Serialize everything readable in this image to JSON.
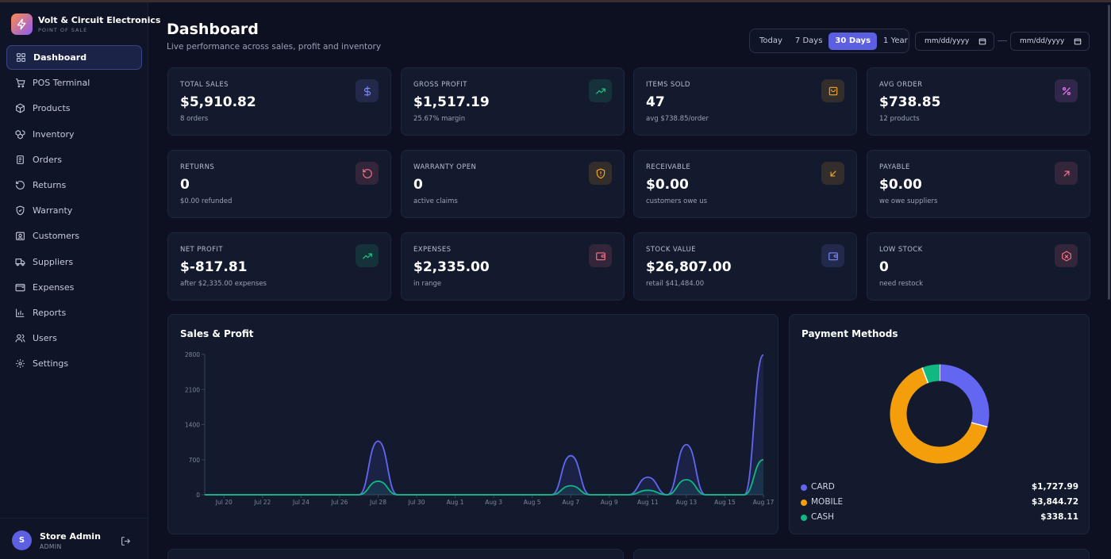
{
  "brand": {
    "name": "Volt & Circuit Electronics",
    "subtitle": "POINT OF SALE"
  },
  "nav": [
    {
      "label": "Dashboard",
      "icon": "grid-icon",
      "active": true
    },
    {
      "label": "POS Terminal",
      "icon": "cart-icon"
    },
    {
      "label": "Products",
      "icon": "box-icon"
    },
    {
      "label": "Inventory",
      "icon": "boxes-icon"
    },
    {
      "label": "Orders",
      "icon": "clipboard-icon"
    },
    {
      "label": "Returns",
      "icon": "return-icon"
    },
    {
      "label": "Warranty",
      "icon": "shield-icon"
    },
    {
      "label": "Customers",
      "icon": "contact-icon"
    },
    {
      "label": "Suppliers",
      "icon": "truck-icon"
    },
    {
      "label": "Expenses",
      "icon": "wallet-icon"
    },
    {
      "label": "Reports",
      "icon": "bar-chart-icon"
    },
    {
      "label": "Users",
      "icon": "users-icon"
    },
    {
      "label": "Settings",
      "icon": "gear-icon"
    }
  ],
  "user": {
    "initial": "S",
    "name": "Store Admin",
    "role": "ADMIN"
  },
  "header": {
    "title": "Dashboard",
    "subtitle": "Live performance across sales, profit and inventory"
  },
  "range": {
    "options": [
      "Today",
      "7 Days",
      "30 Days",
      "1 Year"
    ],
    "active": "30 Days"
  },
  "dates": {
    "from_placeholder": "mm/dd/yyyy",
    "to_placeholder": "mm/dd/yyyy"
  },
  "stats": [
    {
      "label": "TOTAL SALES",
      "value": "$5,910.82",
      "sub": "8 orders",
      "icon": "dollar-icon",
      "color": "#7c87ff"
    },
    {
      "label": "GROSS PROFIT",
      "value": "$1,517.19",
      "sub": "25.67% margin",
      "icon": "trend-up-icon",
      "color": "#22c58b"
    },
    {
      "label": "ITEMS SOLD",
      "value": "47",
      "sub": "avg $738.85/order",
      "icon": "bag-icon",
      "color": "#f5a623"
    },
    {
      "label": "AVG ORDER",
      "value": "$738.85",
      "sub": "12 products",
      "icon": "percent-icon",
      "color": "#e879f9"
    },
    {
      "label": "RETURNS",
      "value": "0",
      "sub": "$0.00 refunded",
      "icon": "rotate-icon",
      "color": "#fb7185"
    },
    {
      "label": "WARRANTY OPEN",
      "value": "0",
      "sub": "active claims",
      "icon": "shield-icon",
      "color": "#f5a623"
    },
    {
      "label": "RECEIVABLE",
      "value": "$0.00",
      "sub": "customers owe us",
      "icon": "arrow-down-left-icon",
      "color": "#f5a623"
    },
    {
      "label": "PAYABLE",
      "value": "$0.00",
      "sub": "we owe suppliers",
      "icon": "arrow-up-right-icon",
      "color": "#fb7185"
    },
    {
      "label": "NET PROFIT",
      "value": "$-817.81",
      "sub": "after $2,335.00 expenses",
      "icon": "trend-up-icon",
      "color": "#22c58b"
    },
    {
      "label": "EXPENSES",
      "value": "$2,335.00",
      "sub": "in range",
      "icon": "wallet-icon",
      "color": "#fb7185"
    },
    {
      "label": "STOCK VALUE",
      "value": "$26,807.00",
      "sub": "retail $41,484.00",
      "icon": "wallet-icon",
      "color": "#7c87ff"
    },
    {
      "label": "LOW STOCK",
      "value": "0",
      "sub": "need restock",
      "icon": "package-x-icon",
      "color": "#fb7185"
    }
  ],
  "sales_panel": {
    "title": "Sales & Profit"
  },
  "payment_panel": {
    "title": "Payment Methods",
    "methods": [
      {
        "name": "CARD",
        "amount": "$1,727.99",
        "value": 1727.99,
        "color": "#6366f1"
      },
      {
        "name": "MOBILE",
        "amount": "$3,844.72",
        "value": 3844.72,
        "color": "#f59e0b"
      },
      {
        "name": "CASH",
        "amount": "$338.11",
        "value": 338.11,
        "color": "#10b981"
      }
    ]
  },
  "chart_data": [
    {
      "type": "area",
      "title": "Sales & Profit",
      "x": [
        "Jul 19",
        "Jul 20",
        "Jul 21",
        "Jul 22",
        "Jul 23",
        "Jul 24",
        "Jul 25",
        "Jul 26",
        "Jul 27",
        "Jul 28",
        "Jul 29",
        "Jul 30",
        "Jul 31",
        "Aug 1",
        "Aug 2",
        "Aug 3",
        "Aug 4",
        "Aug 5",
        "Aug 6",
        "Aug 7",
        "Aug 8",
        "Aug 9",
        "Aug 10",
        "Aug 11",
        "Aug 12",
        "Aug 13",
        "Aug 14",
        "Aug 15",
        "Aug 16",
        "Aug 17"
      ],
      "xticks": [
        "Jul 20",
        "Jul 22",
        "Jul 24",
        "Jul 26",
        "Jul 28",
        "Jul 30",
        "Aug 1",
        "Aug 3",
        "Aug 5",
        "Aug 7",
        "Aug 9",
        "Aug 11",
        "Aug 13",
        "Aug 15",
        "Aug 17"
      ],
      "yticks": [
        "0",
        "700",
        "1400",
        "2100",
        "2800"
      ],
      "ylim": [
        0,
        2800
      ],
      "series": [
        {
          "color": "#6366f1",
          "values": [
            0,
            0,
            0,
            0,
            0,
            0,
            0,
            0,
            0,
            1070,
            0,
            0,
            0,
            0,
            0,
            0,
            0,
            0,
            0,
            780,
            0,
            0,
            0,
            350,
            0,
            1000,
            0,
            0,
            0,
            2790
          ]
        },
        {
          "color": "#10b981",
          "values": [
            0,
            0,
            0,
            0,
            0,
            0,
            0,
            0,
            0,
            270,
            0,
            0,
            0,
            0,
            0,
            0,
            0,
            0,
            0,
            180,
            0,
            0,
            0,
            90,
            0,
            300,
            0,
            0,
            0,
            700
          ]
        }
      ]
    },
    {
      "type": "pie",
      "title": "Payment Methods",
      "categories": [
        "CARD",
        "MOBILE",
        "CASH"
      ],
      "values": [
        1727.99,
        3844.72,
        338.11
      ]
    }
  ]
}
